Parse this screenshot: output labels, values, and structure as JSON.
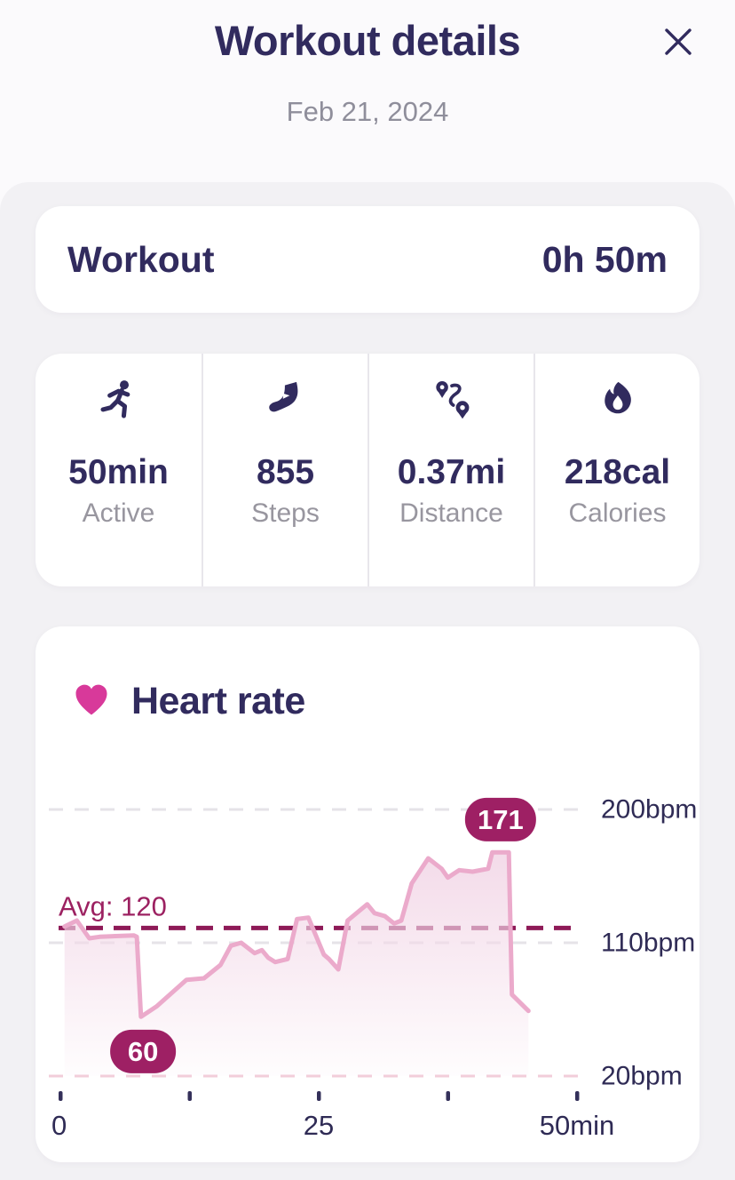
{
  "header": {
    "title": "Workout details",
    "date": "Feb 21, 2024"
  },
  "workout_card": {
    "label": "Workout",
    "duration": "0h 50m"
  },
  "stats": {
    "items": [
      {
        "icon": "runner-icon",
        "value": "50min",
        "label": "Active"
      },
      {
        "icon": "steps-icon",
        "value": "855",
        "label": "Steps"
      },
      {
        "icon": "route-icon",
        "value": "0.37mi",
        "label": "Distance"
      },
      {
        "icon": "flame-icon",
        "value": "218cal",
        "label": "Calories"
      }
    ]
  },
  "heart_rate": {
    "title": "Heart rate",
    "icon": "heart-icon"
  },
  "chart_data": {
    "type": "area",
    "title": "Heart rate",
    "xlabel": "min",
    "ylabel": "bpm",
    "x_range": [
      0,
      50
    ],
    "x_ticks": [
      0,
      12.5,
      25,
      37.5,
      50
    ],
    "x_tick_labels": [
      {
        "t": 0,
        "text": "0"
      },
      {
        "t": 25,
        "text": "25"
      },
      {
        "t": 50,
        "text": "50min"
      }
    ],
    "y_gridlines": [
      {
        "bpm": 200,
        "label": "200bpm",
        "color": "#e6e3e8"
      },
      {
        "bpm": 110,
        "label": "110bpm",
        "color": "#e6e3e8"
      },
      {
        "bpm": 20,
        "label": "20bpm",
        "color": "#f2cdd9"
      }
    ],
    "average": {
      "bpm": 120,
      "label": "Avg: 120"
    },
    "max_badge": {
      "text": "171",
      "t": 42.6,
      "bpm": 171,
      "position": "above"
    },
    "min_badge": {
      "text": "60",
      "t": 8.0,
      "bpm": 60,
      "position": "below"
    },
    "series": [
      {
        "name": "heart_rate_bpm",
        "points": [
          [
            0.4,
            121
          ],
          [
            1.6,
            125
          ],
          [
            2.8,
            113
          ],
          [
            3.8,
            114
          ],
          [
            7.1,
            115
          ],
          [
            7.4,
            114
          ],
          [
            7.8,
            60
          ],
          [
            9.3,
            67
          ],
          [
            12.2,
            85
          ],
          [
            13.9,
            86
          ],
          [
            15.5,
            95
          ],
          [
            16.5,
            108
          ],
          [
            17.5,
            110
          ],
          [
            18.8,
            103
          ],
          [
            19.5,
            105
          ],
          [
            20.1,
            100
          ],
          [
            20.8,
            97
          ],
          [
            22.0,
            99
          ],
          [
            22.9,
            126
          ],
          [
            24.0,
            127
          ],
          [
            25.5,
            102
          ],
          [
            26.0,
            99
          ],
          [
            26.9,
            92
          ],
          [
            27.8,
            125
          ],
          [
            29.7,
            136
          ],
          [
            30.4,
            130
          ],
          [
            31.4,
            128
          ],
          [
            32.3,
            123
          ],
          [
            33.0,
            125
          ],
          [
            34.0,
            150
          ],
          [
            35.6,
            167
          ],
          [
            36.9,
            160
          ],
          [
            37.5,
            154
          ],
          [
            38.6,
            159
          ],
          [
            39.9,
            158
          ],
          [
            41.4,
            160
          ],
          [
            41.8,
            171
          ],
          [
            43.4,
            171
          ],
          [
            43.7,
            75
          ],
          [
            45.3,
            64
          ]
        ]
      }
    ],
    "legend": null,
    "grid": "dashed-horizontal",
    "colors": {
      "line": "#ebaacb",
      "fill_top": "#f3d9e8",
      "avg_line": "#8e1a57",
      "avg_label": "#9c2161",
      "badge_bg": "#9e2064",
      "badge_text": "#ffffff",
      "axis_text": "#2f2b55",
      "tick": "#34305a"
    }
  },
  "colors": {
    "accent_navy": "#312b5e",
    "accent_pink": "#d8399a",
    "accent_magenta": "#9e2064",
    "text_gray": "#98969f",
    "card_bg": "#ffffff",
    "sheet_bg": "#f2f1f4"
  }
}
